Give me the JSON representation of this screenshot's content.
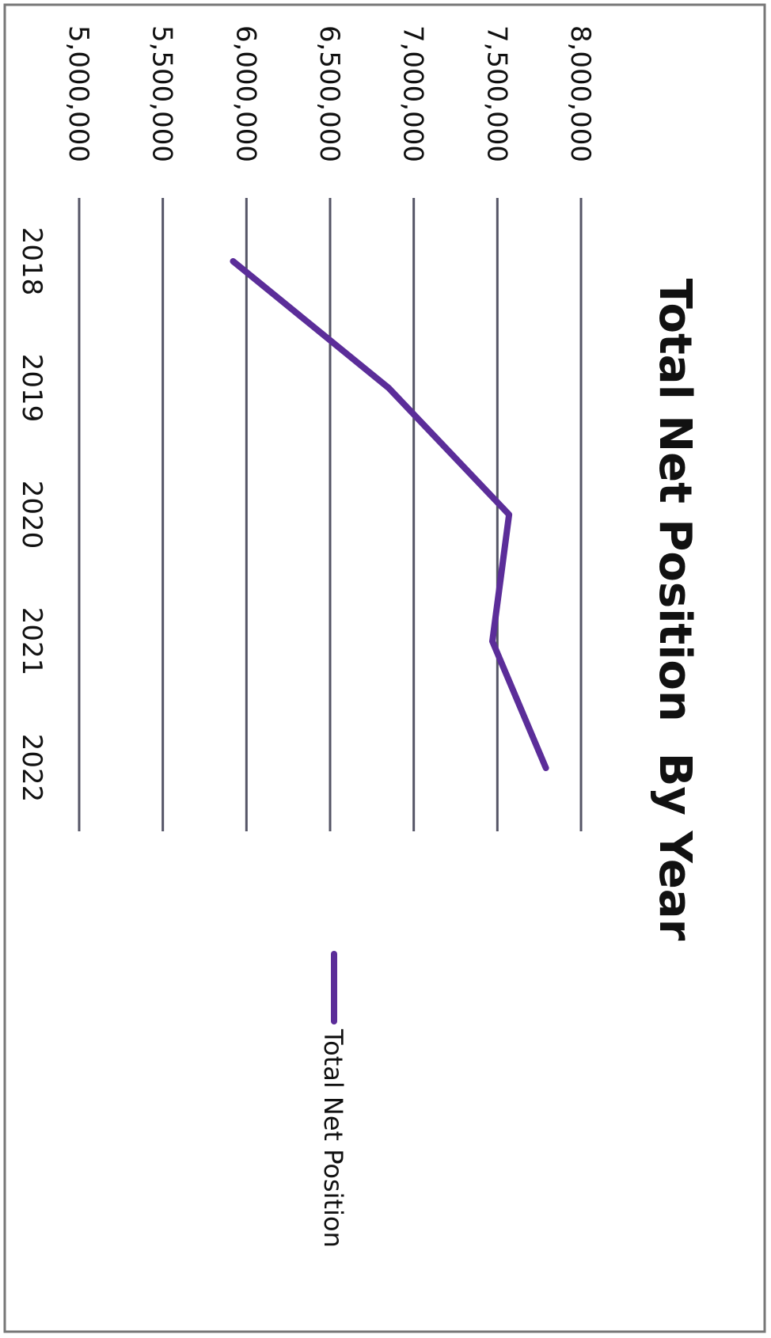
{
  "chart_data": {
    "type": "line",
    "title": "Total Net Position  By Year",
    "xlabel": "",
    "ylabel": "",
    "categories": [
      "2018",
      "2019",
      "2020",
      "2021",
      "2022"
    ],
    "series": [
      {
        "name": "Total Net Position",
        "color": "#5b2d99",
        "values": [
          5920000,
          6850000,
          7570000,
          7470000,
          7790000
        ]
      }
    ],
    "y_ticks": [
      "5,000,000",
      "5,500,000",
      "6,000,000",
      "6,500,000",
      "7,000,000",
      "7,500,000",
      "8,000,000"
    ],
    "ylim": [
      5000000,
      8000000
    ],
    "grid": true,
    "legend": "right",
    "orientation": "rotated 90° clockwise on page"
  }
}
